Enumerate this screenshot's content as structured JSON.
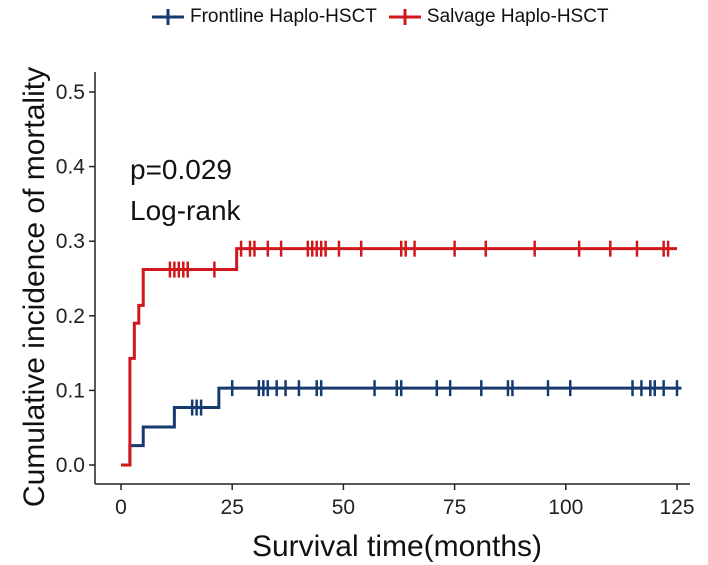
{
  "chart_data": {
    "type": "line",
    "subtype": "step-cumulative-incidence",
    "xlabel": "Survival time(months)",
    "ylabel": "Cumulative incidence of mortality",
    "xlim": [
      0,
      125
    ],
    "ylim": [
      0,
      0.5
    ],
    "xticks": [
      0,
      25,
      50,
      75,
      100,
      125
    ],
    "yticks": [
      0.0,
      0.1,
      0.2,
      0.3,
      0.4,
      0.5
    ],
    "xtick_labels": [
      "0",
      "25",
      "50",
      "75",
      "100",
      "125"
    ],
    "ytick_labels": [
      "0.0",
      "0.1",
      "0.2",
      "0.3",
      "0.4",
      "0.5"
    ],
    "grid": false,
    "legend_position": "top",
    "annotations": [
      {
        "text": "p=0.029"
      },
      {
        "text": "Log-rank"
      }
    ],
    "series": [
      {
        "name": "Frontline Haplo-HSCT",
        "color": "#173a6e",
        "steps": [
          [
            0,
            0.0
          ],
          [
            2,
            0.026
          ],
          [
            5,
            0.051
          ],
          [
            12,
            0.077
          ],
          [
            22,
            0.103
          ],
          [
            126,
            0.103
          ]
        ],
        "censored": [
          [
            16,
            0.077
          ],
          [
            17,
            0.077
          ],
          [
            18,
            0.077
          ],
          [
            25,
            0.103
          ],
          [
            31,
            0.103
          ],
          [
            32,
            0.103
          ],
          [
            33,
            0.103
          ],
          [
            35,
            0.103
          ],
          [
            37,
            0.103
          ],
          [
            40,
            0.103
          ],
          [
            44,
            0.103
          ],
          [
            45,
            0.103
          ],
          [
            57,
            0.103
          ],
          [
            62,
            0.103
          ],
          [
            63,
            0.103
          ],
          [
            71,
            0.103
          ],
          [
            74,
            0.103
          ],
          [
            81,
            0.103
          ],
          [
            87,
            0.103
          ],
          [
            88,
            0.103
          ],
          [
            96,
            0.103
          ],
          [
            101,
            0.103
          ],
          [
            115,
            0.103
          ],
          [
            117,
            0.103
          ],
          [
            119,
            0.103
          ],
          [
            120,
            0.103
          ],
          [
            122,
            0.103
          ],
          [
            125,
            0.103
          ]
        ]
      },
      {
        "name": "Salvage Haplo-HSCT",
        "color": "#d0181c",
        "steps": [
          [
            0,
            0.0
          ],
          [
            2,
            0.143
          ],
          [
            3,
            0.19
          ],
          [
            4,
            0.214
          ],
          [
            5,
            0.262
          ],
          [
            26,
            0.29
          ],
          [
            125,
            0.29
          ]
        ],
        "censored": [
          [
            11,
            0.262
          ],
          [
            12,
            0.262
          ],
          [
            13,
            0.262
          ],
          [
            14,
            0.262
          ],
          [
            15,
            0.262
          ],
          [
            21,
            0.262
          ],
          [
            27,
            0.29
          ],
          [
            29,
            0.29
          ],
          [
            30,
            0.29
          ],
          [
            33,
            0.29
          ],
          [
            36,
            0.29
          ],
          [
            42,
            0.29
          ],
          [
            43,
            0.29
          ],
          [
            44,
            0.29
          ],
          [
            45,
            0.29
          ],
          [
            46,
            0.29
          ],
          [
            49,
            0.29
          ],
          [
            54,
            0.29
          ],
          [
            63,
            0.29
          ],
          [
            64,
            0.29
          ],
          [
            66,
            0.29
          ],
          [
            75,
            0.29
          ],
          [
            82,
            0.29
          ],
          [
            93,
            0.29
          ],
          [
            103,
            0.29
          ],
          [
            110,
            0.29
          ],
          [
            116,
            0.29
          ],
          [
            122,
            0.29
          ],
          [
            123,
            0.29
          ]
        ]
      }
    ]
  }
}
